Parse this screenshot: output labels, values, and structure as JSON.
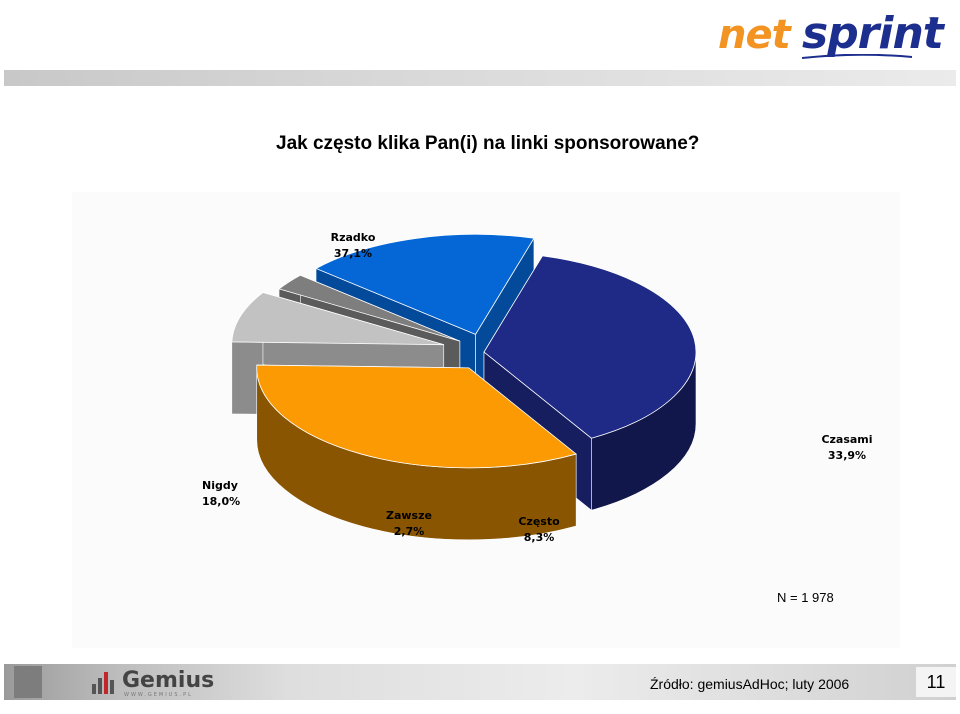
{
  "header": {
    "logo": {
      "part1": "net",
      "part2": "sprint",
      "tm": "™"
    }
  },
  "slide": {
    "title": "Jak często klika Pan(i) na linki sponsorowane?",
    "sample_note": "N = 1 978",
    "source": "Źródło: gemiusAdHoc; luty 2006",
    "page_number": "11"
  },
  "footer": {
    "logo": {
      "word": "Gemius",
      "tag": "WWW.GEMIUS.PL"
    }
  },
  "chart_data": {
    "type": "pie",
    "style": "3d-exploded",
    "title": "",
    "slices": [
      {
        "label": "Rzadko",
        "value": 37.1,
        "value_label": "37,1%",
        "color": "#1e2a86"
      },
      {
        "label": "Czasami",
        "value": 33.9,
        "value_label": "33,9%",
        "color": "#fb9a02"
      },
      {
        "label": "Często",
        "value": 8.3,
        "value_label": "8,3%",
        "color": "#c2c2c2"
      },
      {
        "label": "Zawsze",
        "value": 2.7,
        "value_label": "2,7%",
        "color": "#7e7e7e"
      },
      {
        "label": "Nigdy",
        "value": 18.0,
        "value_label": "18,0%",
        "color": "#0567d6"
      }
    ]
  }
}
